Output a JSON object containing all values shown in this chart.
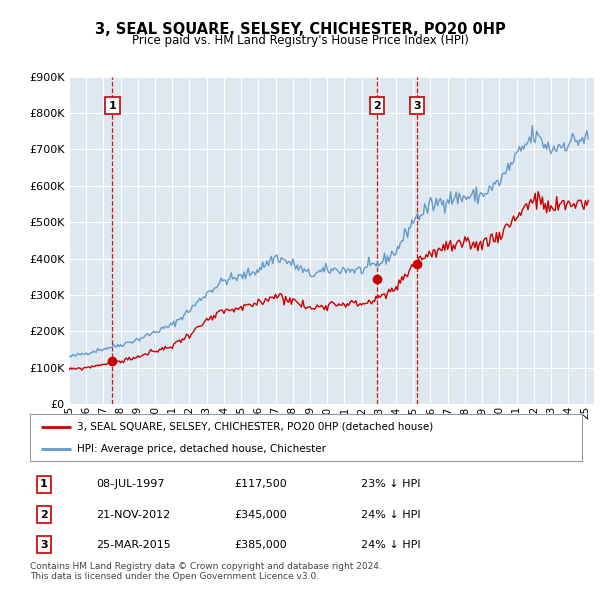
{
  "title": "3, SEAL SQUARE, SELSEY, CHICHESTER, PO20 0HP",
  "subtitle": "Price paid vs. HM Land Registry's House Price Index (HPI)",
  "ylim": [
    0,
    900000
  ],
  "yticks": [
    0,
    100000,
    200000,
    300000,
    400000,
    500000,
    600000,
    700000,
    800000,
    900000
  ],
  "xlim_start": 1995.0,
  "xlim_end": 2025.5,
  "transactions": [
    {
      "num": 1,
      "date_str": "08-JUL-1997",
      "price": 117500,
      "year": 1997.52,
      "pct": "23% ↓ HPI"
    },
    {
      "num": 2,
      "date_str": "21-NOV-2012",
      "price": 345000,
      "year": 2012.89,
      "pct": "24% ↓ HPI"
    },
    {
      "num": 3,
      "date_str": "25-MAR-2015",
      "price": 385000,
      "year": 2015.23,
      "pct": "24% ↓ HPI"
    }
  ],
  "legend_label_red": "3, SEAL SQUARE, SELSEY, CHICHESTER, PO20 0HP (detached house)",
  "legend_label_blue": "HPI: Average price, detached house, Chichester",
  "footer_line1": "Contains HM Land Registry data © Crown copyright and database right 2024.",
  "footer_line2": "This data is licensed under the Open Government Licence v3.0.",
  "red_color": "#cc0000",
  "blue_color": "#6699cc",
  "plot_bg_color": "#dde8f0",
  "grid_color": "#ffffff",
  "vline_color": "#cc0000",
  "bg_color": "#ffffff",
  "hpi_base": {
    "1995": 130000,
    "1996": 140000,
    "1997": 152000,
    "1998": 163000,
    "1999": 178000,
    "2000": 198000,
    "2001": 218000,
    "2002": 258000,
    "2003": 305000,
    "2004": 340000,
    "2005": 350000,
    "2006": 370000,
    "2007": 405000,
    "2008": 385000,
    "2009": 355000,
    "2010": 368000,
    "2011": 370000,
    "2012": 368000,
    "2013": 385000,
    "2014": 420000,
    "2015": 505000,
    "2016": 545000,
    "2017": 565000,
    "2018": 568000,
    "2019": 575000,
    "2020": 610000,
    "2021": 680000,
    "2022": 740000,
    "2023": 700000,
    "2024": 720000,
    "2025": 730000
  },
  "red_base": {
    "1995": 95000,
    "1996": 100000,
    "1997": 110000,
    "1998": 118000,
    "1999": 130000,
    "2000": 145000,
    "2001": 160000,
    "2002": 192000,
    "2003": 228000,
    "2004": 255000,
    "2005": 262000,
    "2006": 278000,
    "2007": 300000,
    "2008": 285000,
    "2009": 262000,
    "2010": 275000,
    "2011": 278000,
    "2012": 275000,
    "2013": 290000,
    "2014": 318000,
    "2015": 385000,
    "2016": 415000,
    "2017": 432000,
    "2018": 435000,
    "2019": 442000,
    "2020": 465000,
    "2021": 518000,
    "2022": 565000,
    "2023": 535000,
    "2024": 550000,
    "2025": 555000
  }
}
